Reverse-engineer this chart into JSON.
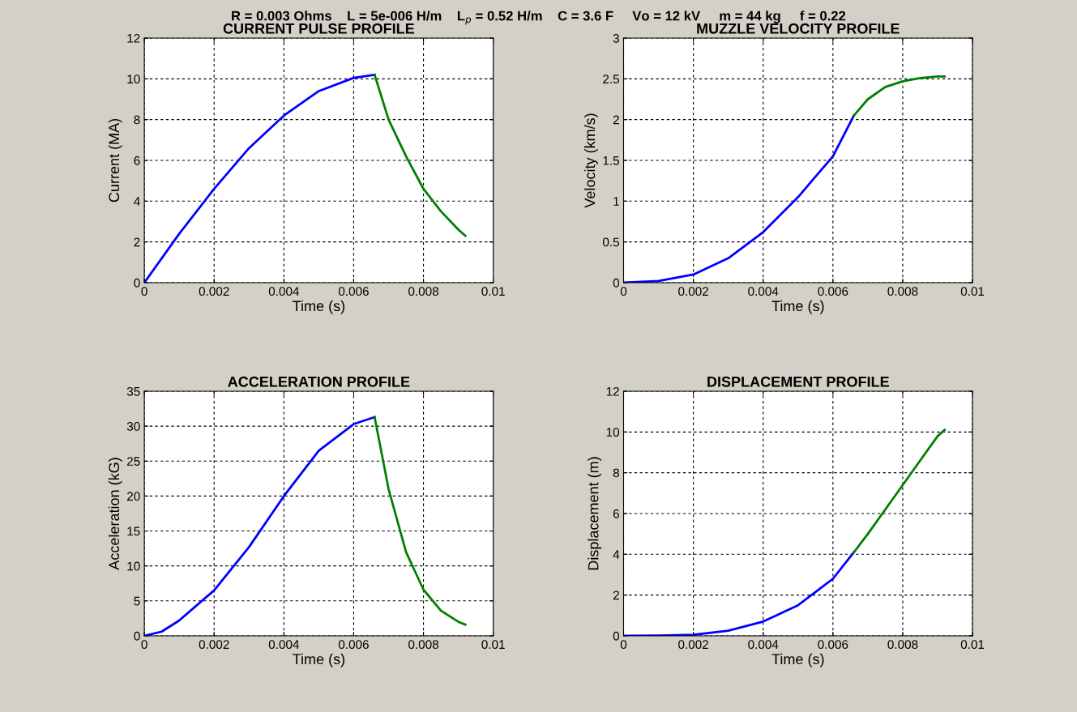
{
  "chart_data": [
    {
      "type": "line",
      "title": "CURRENT PULSE PROFILE",
      "xlabel": "Time (s)",
      "ylabel": "Current (MA)",
      "annotations": [
        "R = 0.003 Ohms    L = 5e-006 H/m    L$_{p}$ = 0.52 H/m    C = 3.6 F     Vo = 12 kV     m = 44 kg     f = 0.22"
      ],
      "xlim": [
        0,
        0.01
      ],
      "ylim": [
        0,
        12
      ],
      "xticks": [
        0,
        0.002,
        0.004,
        0.006,
        0.008,
        0.01
      ],
      "yticks": [
        0,
        2,
        4,
        6,
        8,
        10,
        12
      ],
      "grid": true,
      "marker": "none",
      "line_style": "solid",
      "series": [
        {
          "color": "#0000ff",
          "x": [
            0,
            0.001,
            0.002,
            0.003,
            0.004,
            0.005,
            0.006,
            0.0066
          ],
          "values": [
            0,
            2.4,
            4.6,
            6.6,
            8.2,
            9.4,
            10.05,
            10.2
          ]
        },
        {
          "color": "#008000",
          "x": [
            0.0066,
            0.007,
            0.0075,
            0.008,
            0.0085,
            0.009,
            0.0092
          ],
          "values": [
            10.2,
            8.0,
            6.2,
            4.6,
            3.5,
            2.6,
            2.3
          ]
        }
      ]
    },
    {
      "type": "line",
      "title": "MUZZLE VELOCITY PROFILE",
      "xlabel": "Time (s)",
      "ylabel": "Velocity (km/s)",
      "xlim": [
        0,
        0.01
      ],
      "ylim": [
        0,
        3
      ],
      "xticks": [
        0,
        0.002,
        0.004,
        0.006,
        0.008,
        0.01
      ],
      "yticks": [
        0,
        0.5,
        1,
        1.5,
        2,
        2.5,
        3
      ],
      "grid": true,
      "marker": "none",
      "line_style": "solid",
      "series": [
        {
          "color": "#0000ff",
          "x": [
            0,
            0.001,
            0.002,
            0.003,
            0.004,
            0.005,
            0.006,
            0.0066
          ],
          "values": [
            0,
            0.02,
            0.1,
            0.3,
            0.62,
            1.05,
            1.55,
            2.05
          ]
        },
        {
          "color": "#008000",
          "x": [
            0.0066,
            0.007,
            0.0075,
            0.008,
            0.0085,
            0.009,
            0.0092
          ],
          "values": [
            2.05,
            2.25,
            2.4,
            2.47,
            2.51,
            2.53,
            2.53
          ]
        }
      ]
    },
    {
      "type": "line",
      "title": "ACCELERATION PROFILE",
      "xlabel": "Time (s)",
      "ylabel": "Acceleration (kG)",
      "xlim": [
        0,
        0.01
      ],
      "ylim": [
        0,
        35
      ],
      "xticks": [
        0,
        0.002,
        0.004,
        0.006,
        0.008,
        0.01
      ],
      "yticks": [
        0,
        5,
        10,
        15,
        20,
        25,
        30,
        35
      ],
      "grid": true,
      "marker": "none",
      "line_style": "solid",
      "series": [
        {
          "color": "#0000ff",
          "x": [
            0,
            0.0005,
            0.001,
            0.002,
            0.003,
            0.004,
            0.005,
            0.006,
            0.0066
          ],
          "values": [
            0,
            0.6,
            2.2,
            6.5,
            12.7,
            20,
            26.5,
            30.3,
            31.3
          ]
        },
        {
          "color": "#008000",
          "x": [
            0.0066,
            0.007,
            0.0075,
            0.008,
            0.0085,
            0.009,
            0.0092
          ],
          "values": [
            31.3,
            21,
            12,
            6.6,
            3.6,
            2,
            1.6
          ]
        }
      ]
    },
    {
      "type": "line",
      "title": "DISPLACEMENT PROFILE",
      "xlabel": "Time (s)",
      "ylabel": "Displacement (m)",
      "xlim": [
        0,
        0.01
      ],
      "ylim": [
        0,
        12
      ],
      "xticks": [
        0,
        0.002,
        0.004,
        0.006,
        0.008,
        0.01
      ],
      "yticks": [
        0,
        2,
        4,
        6,
        8,
        10,
        12
      ],
      "grid": true,
      "marker": "none",
      "line_style": "solid",
      "series": [
        {
          "color": "#0000ff",
          "x": [
            0,
            0.001,
            0.002,
            0.003,
            0.004,
            0.005,
            0.006,
            0.0066
          ],
          "values": [
            0,
            0.01,
            0.05,
            0.25,
            0.7,
            1.5,
            2.8,
            4.1
          ]
        },
        {
          "color": "#008000",
          "x": [
            0.0066,
            0.007,
            0.0075,
            0.008,
            0.0085,
            0.009,
            0.0092
          ],
          "values": [
            4.1,
            5.0,
            6.2,
            7.4,
            8.6,
            9.8,
            10.1
          ]
        }
      ]
    }
  ]
}
